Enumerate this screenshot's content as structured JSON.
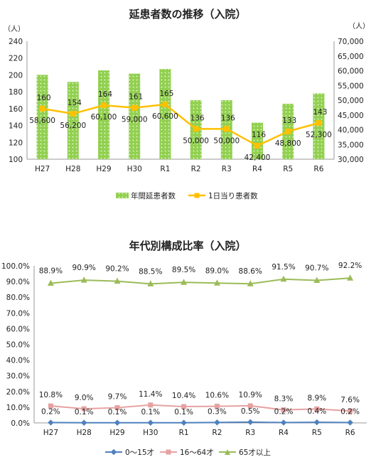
{
  "chart_data": [
    {
      "type": "bar",
      "title": "延患者数の推移（入院）",
      "left_unit": "（人）",
      "right_unit": "（人）",
      "categories": [
        "H27",
        "H28",
        "H29",
        "H30",
        "R1",
        "R2",
        "R3",
        "R4",
        "R5",
        "R6"
      ],
      "ylim": [
        100,
        240
      ],
      "y_ticks": [
        100,
        120,
        140,
        160,
        180,
        200,
        220,
        240
      ],
      "y2lim": [
        30000,
        70000
      ],
      "y2_ticks": [
        30000,
        35000,
        40000,
        45000,
        50000,
        55000,
        60000,
        65000,
        70000
      ],
      "y2_tick_labels": [
        "30,000",
        "35,000",
        "40,000",
        "45,000",
        "50,000",
        "55,000",
        "60,000",
        "65,000",
        "70,000"
      ],
      "grid": false,
      "legend_position": "bottom",
      "colors": {
        "bar": "#92d050",
        "line": "#ffc000"
      },
      "series": [
        {
          "name": "年間延患者数",
          "axis": "right",
          "values": [
            58600,
            56200,
            60100,
            59000,
            60600,
            50000,
            50000,
            42400,
            48800,
            52300
          ],
          "labels": [
            "58,600",
            "56,200",
            "60,100",
            "59,000",
            "60,600",
            "50,000",
            "50,000",
            "42,400",
            "48,800",
            "52,300"
          ]
        },
        {
          "name": "1日当り患者数",
          "axis": "left",
          "values": [
            160,
            154,
            164,
            161,
            165,
            136,
            136,
            116,
            133,
            143
          ],
          "labels": [
            "160",
            "154",
            "164",
            "161",
            "165",
            "136",
            "136",
            "116",
            "133",
            "143"
          ]
        }
      ]
    },
    {
      "type": "line",
      "title": "年代別構成比率（入院）",
      "categories": [
        "H27",
        "H28",
        "H29",
        "H30",
        "R1",
        "R2",
        "R3",
        "R4",
        "R5",
        "R6"
      ],
      "ylim": [
        0,
        100
      ],
      "y_ticks": [
        0,
        10,
        20,
        30,
        40,
        50,
        60,
        70,
        80,
        90,
        100
      ],
      "y_tick_labels": [
        "0.0%",
        "10.0%",
        "20.0%",
        "30.0%",
        "40.0%",
        "50.0%",
        "60.0%",
        "70.0%",
        "80.0%",
        "90.0%",
        "100.0%"
      ],
      "grid": false,
      "legend_position": "bottom",
      "series": [
        {
          "name": "0～15才",
          "color": "#4f81bd",
          "values": [
            0.2,
            0.1,
            0.1,
            0.1,
            0.1,
            0.3,
            0.5,
            0.2,
            0.4,
            0.2
          ],
          "labels": [
            "0.2%",
            "0.1%",
            "0.1%",
            "0.1%",
            "0.1%",
            "0.3%",
            "0.5%",
            "0.2%",
            "0.4%",
            "0.2%"
          ]
        },
        {
          "name": "16～64才",
          "color": "#e6a1a1",
          "values": [
            10.8,
            9.0,
            9.7,
            11.4,
            10.4,
            10.6,
            10.9,
            8.3,
            8.9,
            7.6
          ],
          "labels": [
            "10.8%",
            "9.0%",
            "9.7%",
            "11.4%",
            "10.4%",
            "10.6%",
            "10.9%",
            "8.3%",
            "8.9%",
            "7.6%"
          ]
        },
        {
          "name": "65才以上",
          "color": "#9bbb59",
          "values": [
            88.9,
            90.9,
            90.2,
            88.5,
            89.5,
            89.0,
            88.6,
            91.5,
            90.7,
            92.2
          ],
          "labels": [
            "88.9%",
            "90.9%",
            "90.2%",
            "88.5%",
            "89.5%",
            "89.0%",
            "88.6%",
            "91.5%",
            "90.7%",
            "92.2%"
          ]
        }
      ]
    }
  ]
}
